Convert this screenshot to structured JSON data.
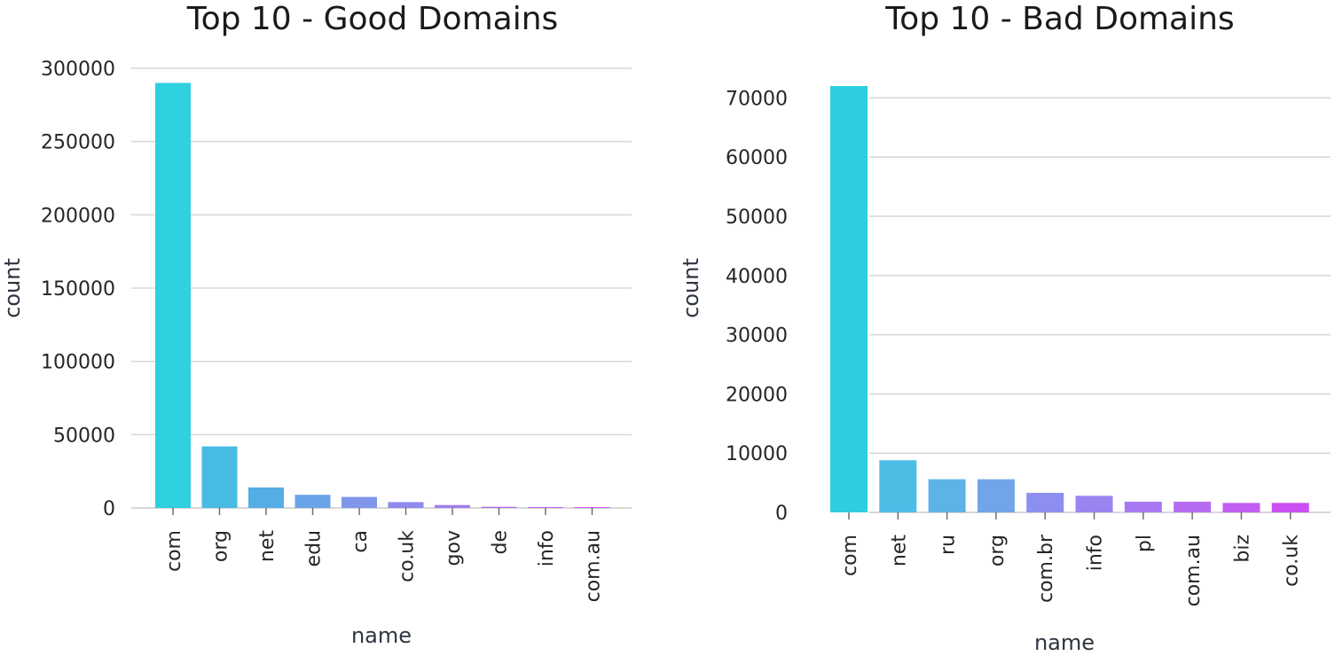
{
  "chart_data": [
    {
      "type": "bar",
      "title": "Top 10 - Good Domains",
      "xlabel": "name",
      "ylabel": "count",
      "categories": [
        "com",
        "org",
        "net",
        "edu",
        "ca",
        "co.uk",
        "gov",
        "de",
        "info",
        "com.au"
      ],
      "values": [
        290000,
        42000,
        14000,
        9000,
        7500,
        4000,
        2000,
        800,
        600,
        500
      ],
      "yticks": [
        "0",
        "50000",
        "100000",
        "150000",
        "200000",
        "250000",
        "300000"
      ],
      "ylim": [
        0,
        300000
      ],
      "grid": true,
      "colors": [
        "#2fd0e0",
        "#47bbe3",
        "#55ade6",
        "#6aa3e8",
        "#7f96ea",
        "#8e89ec",
        "#a07cee",
        "#b06ff0",
        "#c263f2",
        "#d056f4"
      ]
    },
    {
      "type": "bar",
      "title": "Top 10 - Bad Domains",
      "xlabel": "name",
      "ylabel": "count",
      "categories": [
        "com",
        "net",
        "ru",
        "org",
        "com.br",
        "info",
        "pl",
        "com.au",
        "biz",
        "co.uk"
      ],
      "values": [
        72000,
        8800,
        5600,
        5600,
        3300,
        2800,
        1800,
        1800,
        1600,
        1600
      ],
      "yticks": [
        "0",
        "10000",
        "20000",
        "30000",
        "40000",
        "50000",
        "60000",
        "70000"
      ],
      "ylim": [
        0,
        72000
      ],
      "grid": true,
      "colors": [
        "#2fcde0",
        "#4ebde6",
        "#5db3e6",
        "#72a4e9",
        "#8c8ff0",
        "#9a84f0",
        "#a878f2",
        "#b66cf2",
        "#c05ff2",
        "#cc4ff2"
      ]
    }
  ]
}
